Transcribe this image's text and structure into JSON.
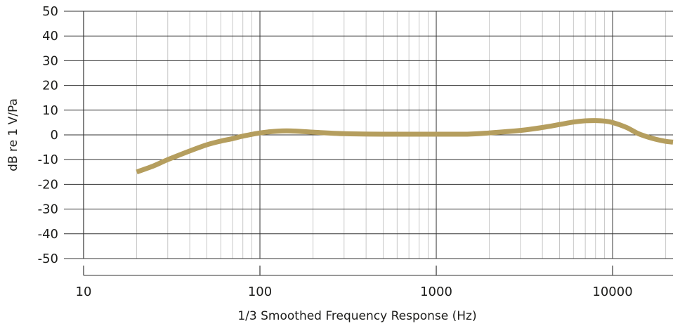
{
  "chart_data": {
    "type": "line",
    "title": "",
    "xlabel": "1/3 Smoothed Frequency Response (Hz)",
    "ylabel": "dB re 1 V/Pa",
    "x_scale": "log",
    "xlim": [
      10,
      22000
    ],
    "ylim": [
      -50,
      50
    ],
    "x_ticks": [
      10,
      100,
      1000,
      10000
    ],
    "x_tick_labels": [
      "10",
      "100",
      "1000",
      "10000"
    ],
    "y_ticks": [
      50,
      40,
      30,
      20,
      10,
      0,
      -10,
      -20,
      -30,
      -40,
      -50
    ],
    "y_tick_labels": [
      "50",
      "40",
      "30",
      "20",
      "10",
      "0",
      "-10",
      "-20",
      "-30",
      "-40",
      "-50"
    ],
    "grid": true,
    "legend": "none",
    "series": [
      {
        "color": "#b59e5e",
        "x": [
          20,
          25,
          30,
          40,
          50,
          60,
          70,
          80,
          100,
          125,
          150,
          200,
          300,
          500,
          1000,
          1500,
          2000,
          3000,
          4000,
          5000,
          6000,
          7000,
          8000,
          9000,
          10000,
          12000,
          14000,
          17000,
          20000,
          22000
        ],
        "y": [
          -15,
          -12.5,
          -10,
          -6.5,
          -4,
          -2.5,
          -1.5,
          -0.5,
          0.8,
          1.5,
          1.6,
          1.1,
          0.5,
          0.3,
          0.3,
          0.3,
          0.8,
          1.8,
          3,
          4.2,
          5.2,
          5.7,
          5.8,
          5.6,
          5,
          3,
          0.5,
          -1.5,
          -2.6,
          -2.9
        ]
      }
    ]
  }
}
